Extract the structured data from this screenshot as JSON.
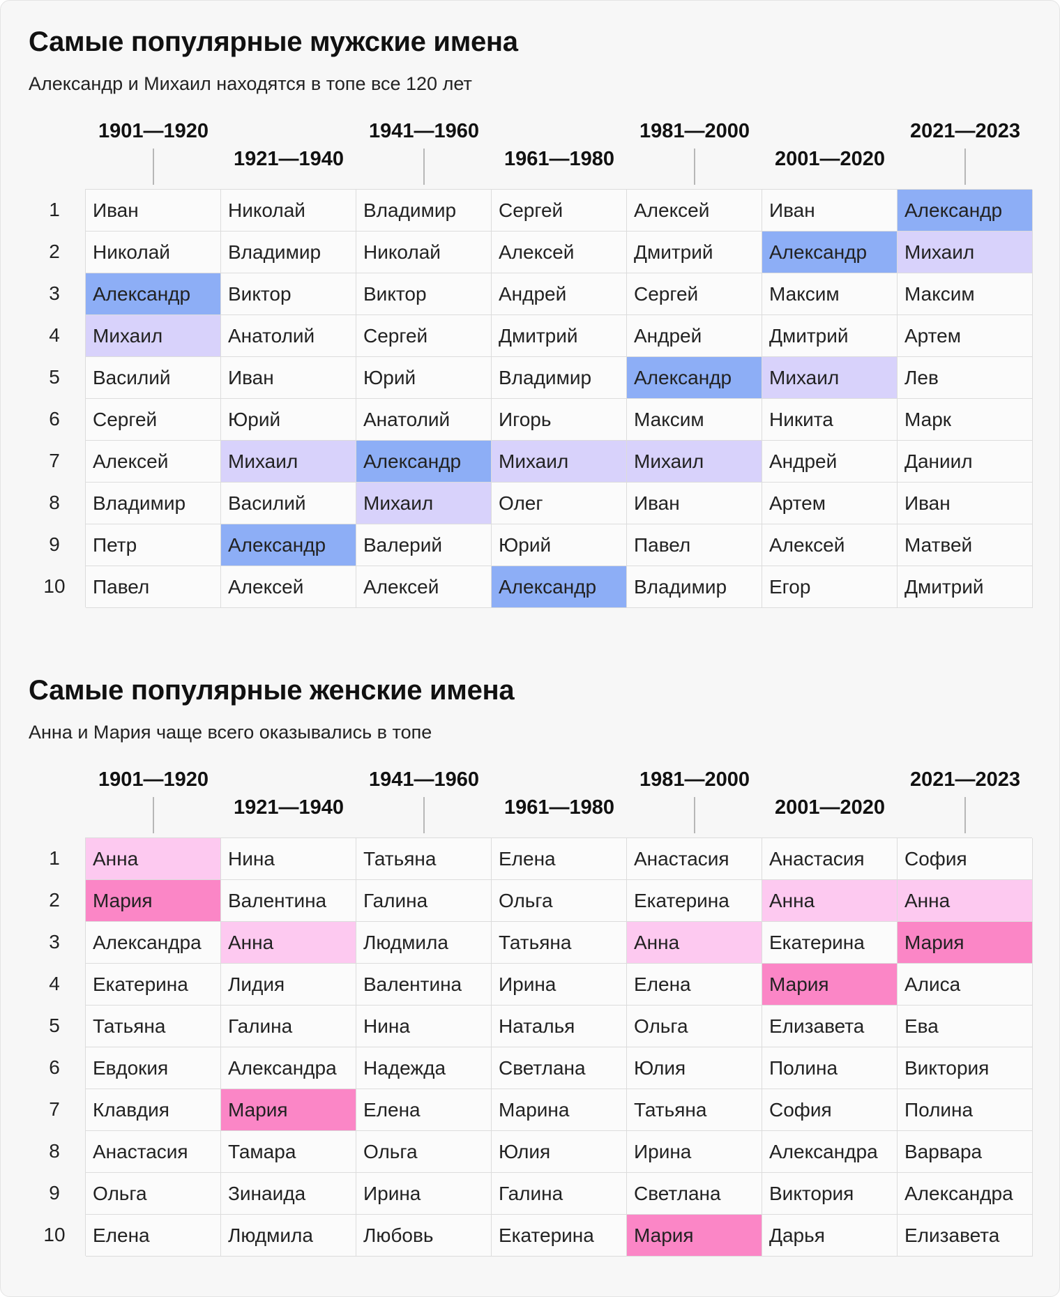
{
  "colors": {
    "primary": "#8daef6",
    "secondary": "#d8d2fb",
    "female_primary": "#fb86c6",
    "female_secondary": "#fdc9f0"
  },
  "periods": [
    "1901—1920",
    "1921—1940",
    "1941—1960",
    "1961—1980",
    "1981—2000",
    "2001—2020",
    "2021—2023"
  ],
  "ranks": [
    "1",
    "2",
    "3",
    "4",
    "5",
    "6",
    "7",
    "8",
    "9",
    "10"
  ],
  "male": {
    "title": "Самые популярные мужские имена",
    "subtitle": "Александр и Михаил находятся в топе все 120 лет",
    "highlight_primary": "Александр",
    "highlight_secondary": "Михаил",
    "columns": [
      [
        "Иван",
        "Николай",
        "Александр",
        "Михаил",
        "Василий",
        "Сергей",
        "Алексей",
        "Владимир",
        "Петр",
        "Павел"
      ],
      [
        "Николай",
        "Владимир",
        "Виктор",
        "Анатолий",
        "Иван",
        "Юрий",
        "Михаил",
        "Василий",
        "Александр",
        "Алексей"
      ],
      [
        "Владимир",
        "Николай",
        "Виктор",
        "Сергей",
        "Юрий",
        "Анатолий",
        "Александр",
        "Михаил",
        "Валерий",
        "Алексей"
      ],
      [
        "Сергей",
        "Алексей",
        "Андрей",
        "Дмитрий",
        "Владимир",
        "Игорь",
        "Михаил",
        "Олег",
        "Юрий",
        "Александр"
      ],
      [
        "Алексей",
        "Дмитрий",
        "Сергей",
        "Андрей",
        "Александр",
        "Максим",
        "Михаил",
        "Иван",
        "Павел",
        "Владимир"
      ],
      [
        "Иван",
        "Александр",
        "Максим",
        "Дмитрий",
        "Михаил",
        "Никита",
        "Андрей",
        "Артем",
        "Алексей",
        "Егор"
      ],
      [
        "Александр",
        "Михаил",
        "Максим",
        "Артем",
        "Лев",
        "Марк",
        "Даниил",
        "Иван",
        "Матвей",
        "Дмитрий"
      ]
    ]
  },
  "female": {
    "title": "Самые популярные женские имена",
    "subtitle": "Анна и Мария чаще всего оказывались в топе",
    "highlight_primary": "Мария",
    "highlight_secondary": "Анна",
    "columns": [
      [
        "Анна",
        "Мария",
        "Александра",
        "Екатерина",
        "Татьяна",
        "Евдокия",
        "Клавдия",
        "Анастасия",
        "Ольга",
        "Елена"
      ],
      [
        "Нина",
        "Валентина",
        "Анна",
        "Лидия",
        "Галина",
        "Александра",
        "Мария",
        "Тамара",
        "Зинаида",
        "Людмила"
      ],
      [
        "Татьяна",
        "Галина",
        "Людмила",
        "Валентина",
        "Нина",
        "Надежда",
        "Елена",
        "Ольга",
        "Ирина",
        "Любовь"
      ],
      [
        "Елена",
        "Ольга",
        "Татьяна",
        "Ирина",
        "Наталья",
        "Светлана",
        "Марина",
        "Юлия",
        "Галина",
        "Екатерина"
      ],
      [
        "Анастасия",
        "Екатерина",
        "Анна",
        "Елена",
        "Ольга",
        "Юлия",
        "Татьяна",
        "Ирина",
        "Светлана",
        "Мария"
      ],
      [
        "Анастасия",
        "Анна",
        "Екатерина",
        "Мария",
        "Елизавета",
        "Полина",
        "София",
        "Александра",
        "Виктория",
        "Дарья"
      ],
      [
        "София",
        "Анна",
        "Мария",
        "Алиса",
        "Ева",
        "Виктория",
        "Полина",
        "Варвара",
        "Александра",
        "Елизавета"
      ]
    ]
  }
}
